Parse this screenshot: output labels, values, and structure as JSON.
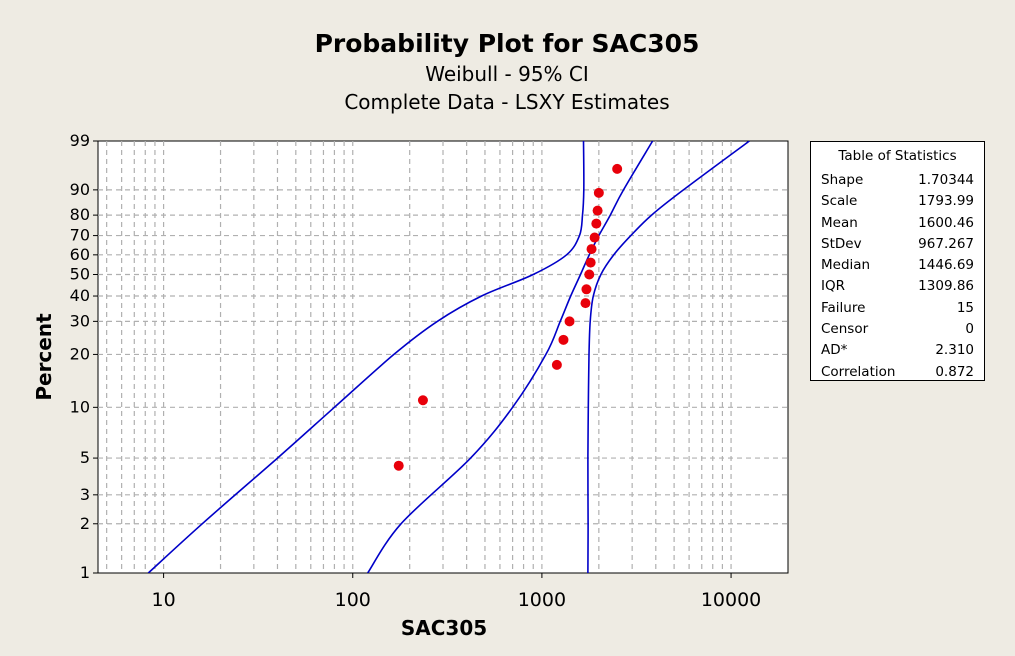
{
  "chart_data": {
    "type": "scatter",
    "title": "Probability Plot for SAC305",
    "subtitle_lines": [
      "Weibull - 95% CI",
      "Complete Data - LSXY Estimates"
    ],
    "xlabel": "SAC305",
    "ylabel": "Percent",
    "x_scale": "log",
    "y_scale": "weibull",
    "xlim": [
      4.5,
      20000
    ],
    "ylim": [
      1,
      99
    ],
    "x_ticks": [
      10,
      100,
      1000,
      10000
    ],
    "x_tick_labels": [
      "10",
      "100",
      "1000",
      "10000"
    ],
    "y_ticks": [
      1,
      2,
      3,
      5,
      10,
      20,
      30,
      40,
      50,
      60,
      70,
      80,
      90,
      99
    ],
    "y_tick_labels": [
      "1",
      "2",
      "3",
      "5",
      "10",
      "20",
      "30",
      "40",
      "50",
      "60",
      "70",
      "80",
      "90",
      "99"
    ],
    "grid": true,
    "series": [
      {
        "color": "#e8000a",
        "points": [
          {
            "x": 175,
            "y": 4.5
          },
          {
            "x": 235,
            "y": 11
          },
          {
            "x": 1200,
            "y": 17.5
          },
          {
            "x": 1300,
            "y": 24
          },
          {
            "x": 1400,
            "y": 30
          },
          {
            "x": 1700,
            "y": 37
          },
          {
            "x": 1720,
            "y": 43
          },
          {
            "x": 1780,
            "y": 50
          },
          {
            "x": 1810,
            "y": 56
          },
          {
            "x": 1830,
            "y": 63
          },
          {
            "x": 1900,
            "y": 69
          },
          {
            "x": 1940,
            "y": 76
          },
          {
            "x": 1970,
            "y": 82
          },
          {
            "x": 2000,
            "y": 89
          },
          {
            "x": 2500,
            "y": 95.5
          }
        ]
      }
    ],
    "fit": {
      "shape": 1.70344,
      "scale": 1793.99,
      "color": "#0000c8"
    },
    "ci_lines": {
      "color": "#0000c8",
      "upper": [
        [
          1,
          8.3
        ],
        [
          2,
          16
        ],
        [
          5,
          40
        ],
        [
          10,
          80
        ],
        [
          20,
          165
        ],
        [
          30,
          280
        ],
        [
          40,
          480
        ],
        [
          50,
          900
        ],
        [
          60,
          1350
        ],
        [
          70,
          1580
        ],
        [
          80,
          1640
        ],
        [
          90,
          1665
        ],
        [
          99,
          1660
        ]
      ],
      "lower": [
        [
          1,
          1750
        ],
        [
          2,
          1755
        ],
        [
          5,
          1750
        ],
        [
          10,
          1760
        ],
        [
          20,
          1775
        ],
        [
          30,
          1800
        ],
        [
          40,
          1870
        ],
        [
          50,
          2050
        ],
        [
          60,
          2400
        ],
        [
          70,
          2950
        ],
        [
          80,
          3800
        ],
        [
          90,
          5600
        ],
        [
          99,
          12500
        ]
      ],
      "fit_line": [
        [
          1,
          120
        ],
        [
          2,
          180
        ],
        [
          5,
          420
        ],
        [
          10,
          700
        ],
        [
          20,
          1050
        ],
        [
          30,
          1250
        ],
        [
          40,
          1420
        ],
        [
          50,
          1600
        ],
        [
          60,
          1780
        ],
        [
          70,
          2000
        ],
        [
          80,
          2300
        ],
        [
          90,
          2700
        ],
        [
          99,
          3850
        ]
      ]
    },
    "legend_box": {
      "title": "Table of Statistics",
      "rows": [
        {
          "label": "Shape",
          "value": "1.70344"
        },
        {
          "label": "Scale",
          "value": "1793.99"
        },
        {
          "label": "Mean",
          "value": "1600.46"
        },
        {
          "label": "StDev",
          "value": "967.267"
        },
        {
          "label": "Median",
          "value": "1446.69"
        },
        {
          "label": "IQR",
          "value": "1309.86"
        },
        {
          "label": "Failure",
          "value": "15"
        },
        {
          "label": "Censor",
          "value": "0"
        },
        {
          "label": "AD*",
          "value": "2.310"
        },
        {
          "label": "Correlation",
          "value": "0.872"
        }
      ],
      "placement": "right"
    }
  }
}
